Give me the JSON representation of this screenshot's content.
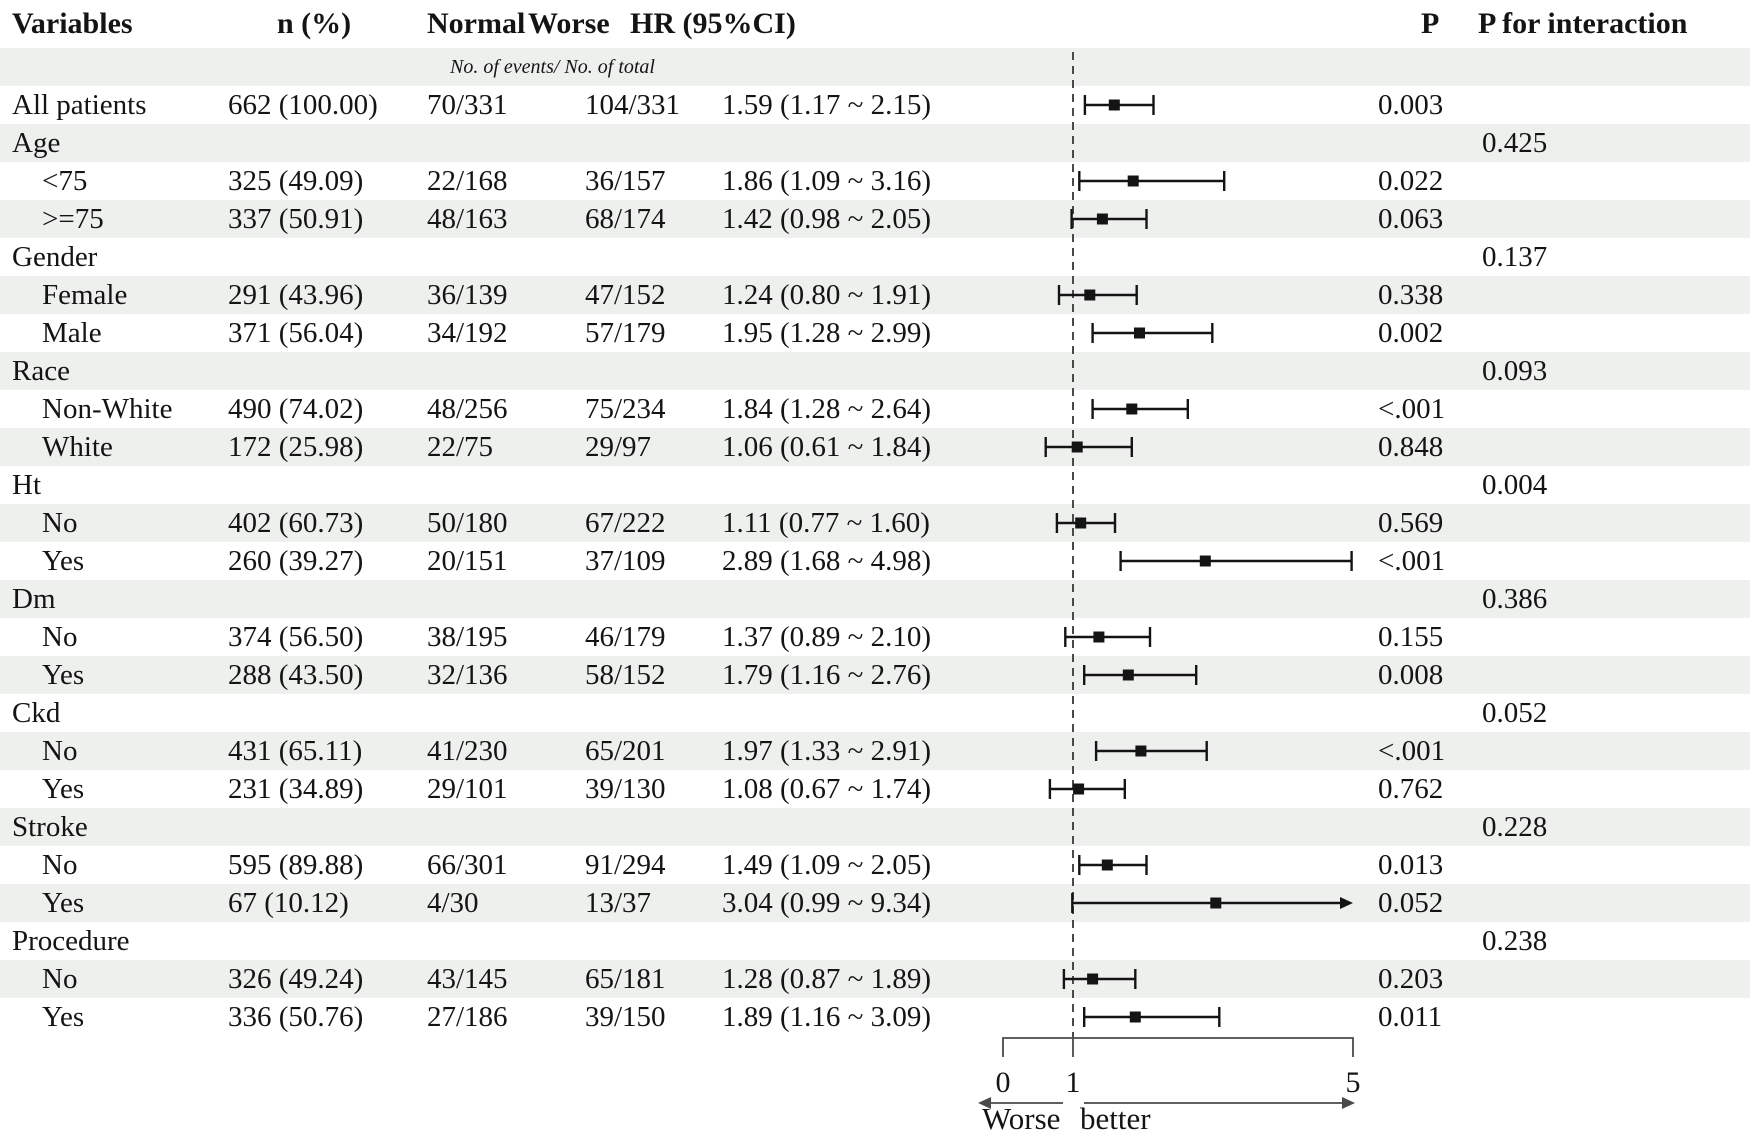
{
  "colors": {
    "ink": "#141414",
    "stripe": "#eef0ee"
  },
  "chart_data": {
    "type": "forest",
    "columns": {
      "variables": "Variables",
      "n": "n (%)",
      "normal": "Normal",
      "worse": "Worse",
      "hr": "HR (95%CI)",
      "p": "P",
      "p_interaction": "P for interaction"
    },
    "subheader": "No. of events/ No. of total",
    "axis": {
      "xlim": [
        0,
        5
      ],
      "ref_line": 1,
      "ticks": [
        0,
        1,
        5
      ],
      "tick_labels": [
        "0",
        "1",
        "5"
      ],
      "direction_left": "Worse",
      "direction_right": "better"
    },
    "rows": [
      {
        "kind": "data",
        "indent": false,
        "label": "All patients",
        "n": "662 (100.00)",
        "normal": "70/331",
        "worse": "104/331",
        "hr_text": "1.59 (1.17 ~ 2.15)",
        "hr": 1.59,
        "lo": 1.17,
        "hi": 2.15,
        "arrow": false,
        "p": "0.003"
      },
      {
        "kind": "group",
        "label": "Age",
        "p_interaction": "0.425"
      },
      {
        "kind": "data",
        "indent": true,
        "label": "<75",
        "n": "325 (49.09)",
        "normal": "22/168",
        "worse": "36/157",
        "hr_text": "1.86 (1.09 ~ 3.16)",
        "hr": 1.86,
        "lo": 1.09,
        "hi": 3.16,
        "arrow": false,
        "p": "0.022"
      },
      {
        "kind": "data",
        "indent": true,
        "label": ">=75",
        "n": "337 (50.91)",
        "normal": "48/163",
        "worse": "68/174",
        "hr_text": "1.42 (0.98 ~ 2.05)",
        "hr": 1.42,
        "lo": 0.98,
        "hi": 2.05,
        "arrow": false,
        "p": "0.063"
      },
      {
        "kind": "group",
        "label": "Gender",
        "p_interaction": "0.137"
      },
      {
        "kind": "data",
        "indent": true,
        "label": "Female",
        "n": "291 (43.96)",
        "normal": "36/139",
        "worse": "47/152",
        "hr_text": "1.24 (0.80 ~ 1.91)",
        "hr": 1.24,
        "lo": 0.8,
        "hi": 1.91,
        "arrow": false,
        "p": "0.338"
      },
      {
        "kind": "data",
        "indent": true,
        "label": "Male",
        "n": "371 (56.04)",
        "normal": "34/192",
        "worse": "57/179",
        "hr_text": "1.95 (1.28 ~ 2.99)",
        "hr": 1.95,
        "lo": 1.28,
        "hi": 2.99,
        "arrow": false,
        "p": "0.002"
      },
      {
        "kind": "group",
        "label": "Race",
        "p_interaction": "0.093"
      },
      {
        "kind": "data",
        "indent": true,
        "label": "Non-White",
        "n": "490 (74.02)",
        "normal": "48/256",
        "worse": "75/234",
        "hr_text": "1.84 (1.28 ~ 2.64)",
        "hr": 1.84,
        "lo": 1.28,
        "hi": 2.64,
        "arrow": false,
        "p": "<.001"
      },
      {
        "kind": "data",
        "indent": true,
        "label": "White",
        "n": "172 (25.98)",
        "normal": "22/75",
        "worse": "29/97",
        "hr_text": "1.06 (0.61 ~ 1.84)",
        "hr": 1.06,
        "lo": 0.61,
        "hi": 1.84,
        "arrow": false,
        "p": "0.848"
      },
      {
        "kind": "group",
        "label": "Ht",
        "p_interaction": "0.004"
      },
      {
        "kind": "data",
        "indent": true,
        "label": "No",
        "n": "402 (60.73)",
        "normal": "50/180",
        "worse": "67/222",
        "hr_text": "1.11 (0.77 ~ 1.60)",
        "hr": 1.11,
        "lo": 0.77,
        "hi": 1.6,
        "arrow": false,
        "p": "0.569"
      },
      {
        "kind": "data",
        "indent": true,
        "label": "Yes",
        "n": "260 (39.27)",
        "normal": "20/151",
        "worse": "37/109",
        "hr_text": "2.89 (1.68 ~ 4.98)",
        "hr": 2.89,
        "lo": 1.68,
        "hi": 4.98,
        "arrow": false,
        "p": "<.001"
      },
      {
        "kind": "group",
        "label": "Dm",
        "p_interaction": "0.386"
      },
      {
        "kind": "data",
        "indent": true,
        "label": "No",
        "n": "374 (56.50)",
        "normal": "38/195",
        "worse": "46/179",
        "hr_text": "1.37 (0.89 ~ 2.10)",
        "hr": 1.37,
        "lo": 0.89,
        "hi": 2.1,
        "arrow": false,
        "p": "0.155"
      },
      {
        "kind": "data",
        "indent": true,
        "label": "Yes",
        "n": "288 (43.50)",
        "normal": "32/136",
        "worse": "58/152",
        "hr_text": "1.79 (1.16 ~ 2.76)",
        "hr": 1.79,
        "lo": 1.16,
        "hi": 2.76,
        "arrow": false,
        "p": "0.008"
      },
      {
        "kind": "group",
        "label": "Ckd",
        "p_interaction": "0.052"
      },
      {
        "kind": "data",
        "indent": true,
        "label": "No",
        "n": "431 (65.11)",
        "normal": "41/230",
        "worse": "65/201",
        "hr_text": "1.97 (1.33 ~ 2.91)",
        "hr": 1.97,
        "lo": 1.33,
        "hi": 2.91,
        "arrow": false,
        "p": "<.001"
      },
      {
        "kind": "data",
        "indent": true,
        "label": "Yes",
        "n": "231 (34.89)",
        "normal": "29/101",
        "worse": "39/130",
        "hr_text": "1.08 (0.67 ~ 1.74)",
        "hr": 1.08,
        "lo": 0.67,
        "hi": 1.74,
        "arrow": false,
        "p": "0.762"
      },
      {
        "kind": "group",
        "label": "Stroke",
        "p_interaction": "0.228"
      },
      {
        "kind": "data",
        "indent": true,
        "label": "No",
        "n": "595 (89.88)",
        "normal": "66/301",
        "worse": "91/294",
        "hr_text": "1.49 (1.09 ~ 2.05)",
        "hr": 1.49,
        "lo": 1.09,
        "hi": 2.05,
        "arrow": false,
        "p": "0.013"
      },
      {
        "kind": "data",
        "indent": true,
        "label": "Yes",
        "n": "67 (10.12)",
        "normal": "4/30",
        "worse": "13/37",
        "hr_text": "3.04 (0.99 ~ 9.34)",
        "hr": 3.04,
        "lo": 0.99,
        "hi": 9.34,
        "arrow": true,
        "p": "0.052"
      },
      {
        "kind": "group",
        "label": "Procedure",
        "p_interaction": "0.238"
      },
      {
        "kind": "data",
        "indent": true,
        "label": "No",
        "n": "326 (49.24)",
        "normal": "43/145",
        "worse": "65/181",
        "hr_text": "1.28 (0.87 ~ 1.89)",
        "hr": 1.28,
        "lo": 0.87,
        "hi": 1.89,
        "arrow": false,
        "p": "0.203"
      },
      {
        "kind": "data",
        "indent": true,
        "label": "Yes",
        "n": "336 (50.76)",
        "normal": "27/186",
        "worse": "39/150",
        "hr_text": "1.89 (1.16 ~ 3.09)",
        "hr": 1.89,
        "lo": 1.16,
        "hi": 3.09,
        "arrow": false,
        "p": "0.011"
      }
    ]
  }
}
